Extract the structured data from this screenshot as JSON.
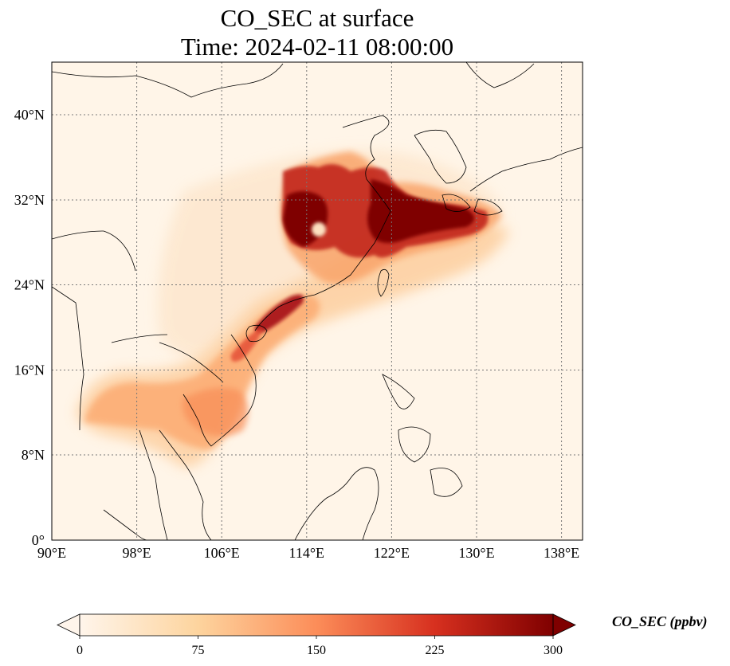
{
  "title": {
    "line1": "CO_SEC at surface",
    "line2": "Time: 2024-02-11 08:00:00"
  },
  "map": {
    "lon_range": [
      90,
      140
    ],
    "lat_range": [
      0,
      44
    ],
    "lon_ticks": [
      "90°E",
      "98°E",
      "106°E",
      "114°E",
      "122°E",
      "130°E",
      "138°E"
    ],
    "lat_ticks": [
      "0°",
      "8°N",
      "16°N",
      "24°N",
      "32°N",
      "40°N"
    ],
    "grid": "dotted",
    "colormap": "OrRd",
    "background_color": "#fff5e8"
  },
  "colorbar": {
    "label": "CO_SEC (ppbv)",
    "ticks": [
      "0",
      "75",
      "150",
      "225",
      "300"
    ],
    "extend": "both",
    "colors": [
      "#fff5eb",
      "#fdd9a8",
      "#fc8d59",
      "#d7301f",
      "#7f0000"
    ]
  }
}
